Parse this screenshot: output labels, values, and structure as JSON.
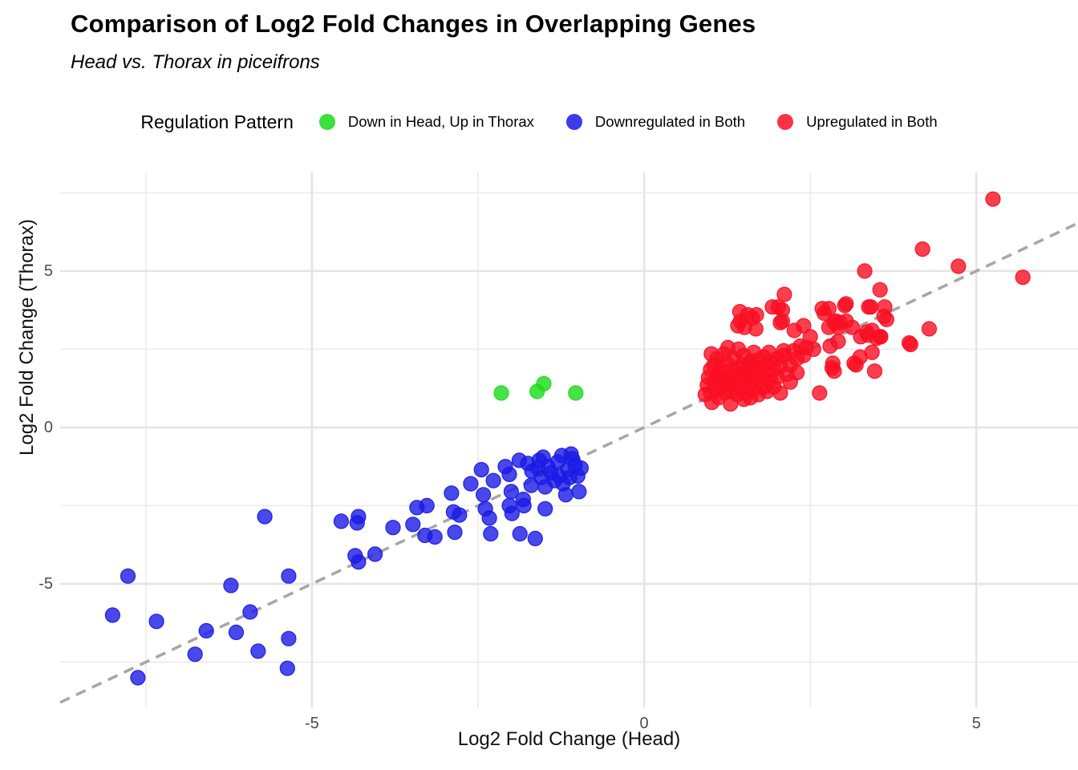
{
  "header": {
    "title": "Comparison of Log2 Fold Changes in Overlapping Genes",
    "subtitle": "Head vs. Thorax in piceifrons"
  },
  "legend": {
    "title": "Regulation Pattern",
    "items": [
      {
        "label": "Down in Head, Up in Thorax",
        "color": "#1ADB1A"
      },
      {
        "label": "Downregulated in Both",
        "color": "#1A1AE6"
      },
      {
        "label": "Upregulated in Both",
        "color": "#FA0F23"
      }
    ]
  },
  "axis": {
    "x_title": "Log2 Fold Change (Head)",
    "y_title": "Log2 Fold Change (Thorax)",
    "x_tick_labels": [
      "-5",
      "0",
      "5"
    ],
    "y_tick_labels": [
      "-5",
      "0",
      "5"
    ]
  },
  "style": {
    "point_radius": 9,
    "point_opacity": 0.8,
    "grid_major_color": "#E4E4E4",
    "grid_minor_color": "#EDEDED",
    "reference_line_color": "#A6A6A6"
  },
  "chart_data": {
    "type": "scatter",
    "title": "Comparison of Log2 Fold Changes in Overlapping Genes",
    "subtitle": "Head vs. Thorax in piceifrons",
    "xlabel": "Log2 Fold Change (Head)",
    "ylabel": "Log2 Fold Change (Thorax)",
    "xlim": [
      -8.79,
      6.53
    ],
    "ylim": [
      -8.95,
      8.15
    ],
    "x_ticks": [
      -5,
      0,
      5
    ],
    "y_ticks": [
      -5,
      0,
      5
    ],
    "x_minor_ticks": [
      -7.5,
      -2.5,
      2.5
    ],
    "y_minor_ticks": [
      -7.5,
      -2.5,
      2.5,
      7.5
    ],
    "grid": true,
    "legend_position": "top",
    "legend_title": "Regulation Pattern",
    "reference_line": {
      "type": "identity y=x",
      "style": "dashed"
    },
    "series": [
      {
        "name": "Down in Head, Up in Thorax",
        "color": "#1ADB1A",
        "points": [
          [
            -2.15,
            1.1
          ],
          [
            -1.61,
            1.15
          ],
          [
            -1.51,
            1.4
          ],
          [
            -1.03,
            1.1
          ]
        ]
      },
      {
        "name": "Downregulated in Both",
        "color": "#1A1AE6",
        "points": [
          [
            -8.0,
            -6.0
          ],
          [
            -7.77,
            -4.75
          ],
          [
            -7.62,
            -8.0
          ],
          [
            -7.34,
            -6.2
          ],
          [
            -6.76,
            -7.25
          ],
          [
            -6.59,
            -6.5
          ],
          [
            -6.22,
            -5.05
          ],
          [
            -6.14,
            -6.55
          ],
          [
            -5.93,
            -5.9
          ],
          [
            -5.81,
            -7.15
          ],
          [
            -5.35,
            -6.75
          ],
          [
            -5.37,
            -7.7
          ],
          [
            -5.35,
            -4.75
          ],
          [
            -5.71,
            -2.85
          ],
          [
            -4.56,
            -3.0
          ],
          [
            -4.32,
            -3.05
          ],
          [
            -4.3,
            -2.85
          ],
          [
            -4.35,
            -4.1
          ],
          [
            -4.3,
            -4.3
          ],
          [
            -4.05,
            -4.05
          ],
          [
            -3.78,
            -3.2
          ],
          [
            -3.48,
            -3.1
          ],
          [
            -3.42,
            -2.56
          ],
          [
            -3.27,
            -2.5
          ],
          [
            -3.3,
            -3.45
          ],
          [
            -3.15,
            -3.5
          ],
          [
            -2.9,
            -2.1
          ],
          [
            -2.87,
            -2.7
          ],
          [
            -2.78,
            -2.8
          ],
          [
            -2.85,
            -3.35
          ],
          [
            -2.61,
            -1.8
          ],
          [
            -2.45,
            -1.35
          ],
          [
            -2.42,
            -2.15
          ],
          [
            -2.39,
            -2.6
          ],
          [
            -2.33,
            -2.9
          ],
          [
            -2.31,
            -3.4
          ],
          [
            -2.27,
            -1.7
          ],
          [
            -2.09,
            -1.25
          ],
          [
            -2.03,
            -1.5
          ],
          [
            -2.0,
            -2.05
          ],
          [
            -2.03,
            -2.5
          ],
          [
            -1.99,
            -2.75
          ],
          [
            -1.88,
            -1.05
          ],
          [
            -1.82,
            -2.3
          ],
          [
            -1.81,
            -2.5
          ],
          [
            -1.87,
            -3.4
          ],
          [
            -1.69,
            -1.4
          ],
          [
            -1.52,
            -0.95
          ],
          [
            -1.49,
            -1.9
          ],
          [
            -1.49,
            -2.6
          ],
          [
            -1.64,
            -3.55
          ],
          [
            -1.24,
            -0.9
          ],
          [
            -1.22,
            -1.8
          ],
          [
            -1.18,
            -2.15
          ],
          [
            -1.1,
            -0.85
          ],
          [
            -1.04,
            -1.2
          ],
          [
            -1.0,
            -1.55
          ],
          [
            -0.98,
            -2.05
          ],
          [
            -1.75,
            -1.15
          ],
          [
            -1.6,
            -1.3
          ],
          [
            -1.55,
            -1.6
          ],
          [
            -1.45,
            -1.25
          ],
          [
            -1.4,
            -1.45
          ],
          [
            -1.35,
            -1.7
          ],
          [
            -1.3,
            -1.1
          ],
          [
            -1.28,
            -1.55
          ],
          [
            -1.15,
            -1.35
          ],
          [
            -1.12,
            -1.6
          ],
          [
            -1.08,
            -1.0
          ],
          [
            -0.95,
            -1.3
          ],
          [
            -1.58,
            -1.05
          ],
          [
            -1.7,
            -1.85
          ]
        ]
      },
      {
        "name": "Upregulated in Both",
        "color": "#FA0F23",
        "points": [
          [
            5.25,
            7.3
          ],
          [
            4.19,
            5.7
          ],
          [
            4.73,
            5.15
          ],
          [
            5.7,
            4.8
          ],
          [
            3.32,
            5.0
          ],
          [
            3.55,
            4.4
          ],
          [
            3.04,
            3.95
          ],
          [
            3.41,
            3.85
          ],
          [
            3.62,
            3.85
          ],
          [
            2.68,
            3.8
          ],
          [
            3.61,
            3.55
          ],
          [
            2.86,
            3.35
          ],
          [
            2.92,
            3.2
          ],
          [
            3.37,
            2.95
          ],
          [
            3.55,
            2.9
          ],
          [
            4.29,
            3.15
          ],
          [
            3.99,
            2.7
          ],
          [
            3.43,
            2.4
          ],
          [
            2.8,
            2.6
          ],
          [
            2.84,
            2.05
          ],
          [
            3.16,
            2.05
          ],
          [
            3.47,
            1.8
          ],
          [
            2.64,
            1.1
          ],
          [
            2.11,
            4.25
          ],
          [
            2.02,
            3.85
          ],
          [
            2.08,
            3.75
          ],
          [
            1.56,
            3.6
          ],
          [
            1.63,
            3.5
          ],
          [
            1.45,
            3.4
          ],
          [
            1.51,
            3.2
          ],
          [
            1.68,
            3.15
          ],
          [
            2.08,
            3.4
          ],
          [
            1.41,
            3.25
          ],
          [
            2.71,
            3.65
          ],
          [
            3.02,
            3.9
          ],
          [
            3.38,
            3.85
          ],
          [
            2.95,
            3.35
          ],
          [
            2.78,
            3.2
          ],
          [
            3.04,
            3.4
          ],
          [
            3.43,
            3.1
          ],
          [
            4.01,
            2.65
          ],
          [
            3.65,
            3.45
          ],
          [
            3.56,
            2.9
          ],
          [
            1.01,
            2.35
          ],
          [
            1.26,
            2.55
          ],
          [
            1.44,
            3.7
          ],
          [
            1.69,
            3.6
          ],
          [
            1.93,
            3.85
          ],
          [
            2.05,
            3.35
          ],
          [
            2.26,
            3.1
          ],
          [
            2.4,
            3.25
          ],
          [
            2.44,
            2.55
          ],
          [
            2.1,
            2.45
          ],
          [
            2.83,
            1.9
          ],
          [
            2.86,
            1.8
          ],
          [
            3.25,
            2.25
          ],
          [
            3.19,
            2.0
          ],
          [
            3.5,
            2.85
          ],
          [
            3.26,
            2.9
          ],
          [
            3.35,
            3.05
          ],
          [
            2.89,
            3.4
          ],
          [
            2.92,
            2.75
          ],
          [
            3.13,
            3.2
          ],
          [
            2.78,
            3.8
          ],
          [
            0.92,
            1.05
          ],
          [
            0.95,
            1.35
          ],
          [
            0.97,
            1.6
          ],
          [
            1.0,
            1.1
          ],
          [
            1.0,
            1.85
          ],
          [
            1.02,
            0.8
          ],
          [
            1.05,
            1.45
          ],
          [
            1.05,
            2.0
          ],
          [
            1.08,
            1.2
          ],
          [
            1.1,
            1.65
          ],
          [
            1.1,
            2.2
          ],
          [
            1.12,
            0.95
          ],
          [
            1.15,
            1.5
          ],
          [
            1.15,
            1.9
          ],
          [
            1.18,
            1.3
          ],
          [
            1.2,
            1.75
          ],
          [
            1.2,
            2.35
          ],
          [
            1.22,
            1.1
          ],
          [
            1.25,
            1.55
          ],
          [
            1.25,
            2.05
          ],
          [
            1.28,
            1.35
          ],
          [
            1.3,
            0.75
          ],
          [
            1.3,
            1.8
          ],
          [
            1.32,
            1.15
          ],
          [
            1.35,
            1.6
          ],
          [
            1.35,
            2.2
          ],
          [
            1.38,
            1.4
          ],
          [
            1.4,
            1.05
          ],
          [
            1.4,
            1.9
          ],
          [
            1.42,
            2.5
          ],
          [
            1.45,
            1.25
          ],
          [
            1.45,
            1.7
          ],
          [
            1.48,
            2.0
          ],
          [
            1.5,
            0.9
          ],
          [
            1.5,
            1.5
          ],
          [
            1.5,
            2.3
          ],
          [
            1.52,
            1.1
          ],
          [
            1.55,
            1.8
          ],
          [
            1.58,
            1.35
          ],
          [
            1.6,
            0.95
          ],
          [
            1.6,
            1.6
          ],
          [
            1.6,
            2.1
          ],
          [
            1.62,
            1.95
          ],
          [
            1.65,
            1.2
          ],
          [
            1.65,
            2.4
          ],
          [
            1.68,
            1.75
          ],
          [
            1.7,
            1.45
          ],
          [
            1.7,
            2.15
          ],
          [
            1.72,
            1.05
          ],
          [
            1.75,
            1.9
          ],
          [
            1.78,
            1.6
          ],
          [
            1.8,
            1.3
          ],
          [
            1.8,
            2.25
          ],
          [
            1.82,
            2.0
          ],
          [
            1.85,
            1.15
          ],
          [
            1.85,
            1.75
          ],
          [
            1.88,
            2.4
          ],
          [
            1.9,
            1.5
          ],
          [
            1.9,
            2.1
          ],
          [
            1.95,
            1.3
          ],
          [
            1.95,
            1.85
          ],
          [
            2.0,
            1.6
          ],
          [
            2.0,
            2.2
          ],
          [
            2.05,
            1.1
          ],
          [
            2.05,
            1.95
          ],
          [
            2.1,
            2.3
          ],
          [
            2.15,
            1.7
          ],
          [
            2.2,
            1.45
          ],
          [
            2.2,
            2.0
          ],
          [
            2.25,
            2.45
          ],
          [
            2.3,
            1.75
          ],
          [
            2.3,
            2.2
          ],
          [
            2.35,
            2.6
          ],
          [
            2.4,
            2.3
          ],
          [
            2.5,
            2.9
          ],
          [
            2.55,
            2.5
          ]
        ]
      }
    ]
  }
}
